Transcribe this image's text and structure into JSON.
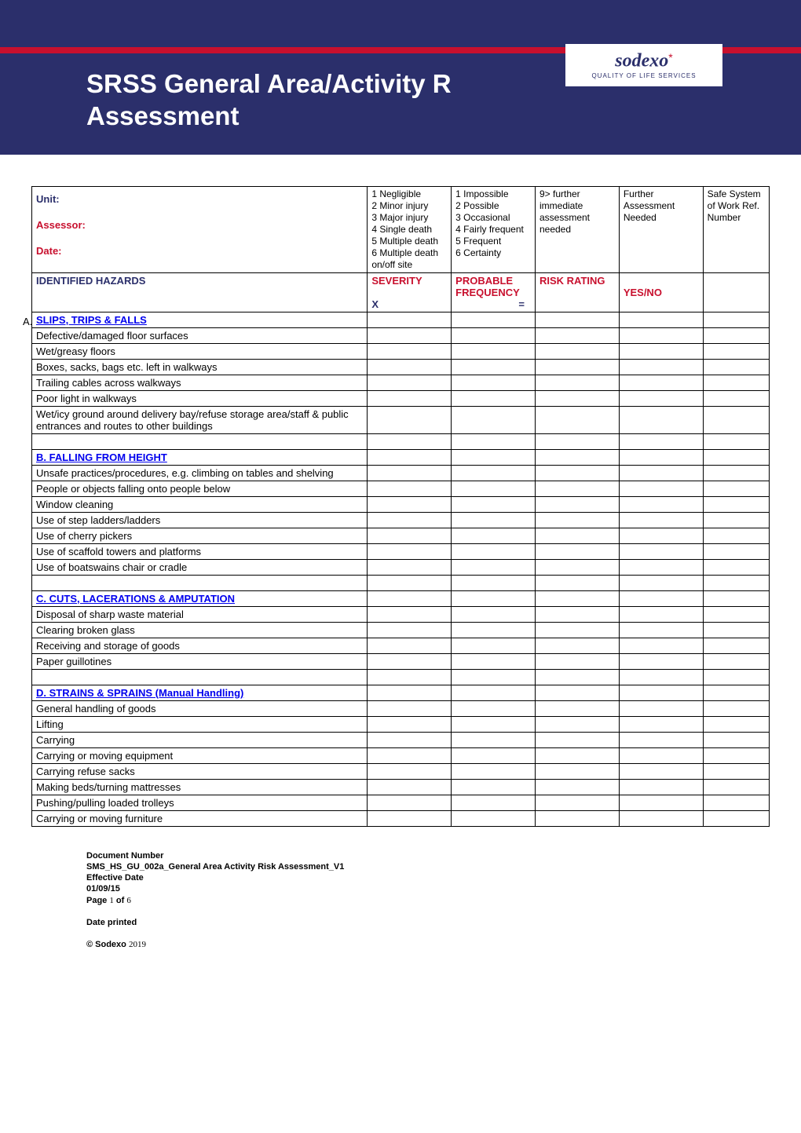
{
  "colors": {
    "navy": "#2b2f6b",
    "red": "#c8102e",
    "white": "#ffffff",
    "link_blue": "#0000ee",
    "border": "#000000"
  },
  "fonts": {
    "body": "Arial, Helvetica, sans-serif",
    "title_size_pt": 33,
    "table_size_pt": 13,
    "footer_size_pt": 11
  },
  "logo": {
    "brand": "sodexo",
    "tagline": "QUALITY OF LIFE SERVICES"
  },
  "title_line1": "SRSS General Area/Activity R",
  "title_line2": "Assessment",
  "form_fields": {
    "unit_label": "Unit:",
    "assessor_label": "Assessor:",
    "date_label": "Date:"
  },
  "severity_scale": [
    "1 Negligible",
    "2 Minor injury",
    "3 Major injury",
    "4 Single death",
    "5 Multiple death",
    "6 Multiple death on/off site"
  ],
  "frequency_scale": [
    "1 Impossible",
    "2 Possible",
    "3 Occasional",
    "4 Fairly frequent",
    "5 Frequent",
    "6 Certainty"
  ],
  "risk_note": "9> further immediate assessment needed",
  "further_header": "Further Assessment Needed",
  "safe_header": "Safe System of Work Ref. Number",
  "column_headers": {
    "hazards": "IDENTIFIED HAZARDS",
    "severity": "SEVERITY",
    "severity_sub": "X",
    "frequency": "PROBABLE FREQUENCY",
    "frequency_sub": "=",
    "risk": "RISK RATING",
    "yesno": "YES/NO"
  },
  "section_a_marker": "A.",
  "sections": [
    {
      "heading": "SLIPS, TRIPS & FALLS",
      "style": "link",
      "rows": [
        "Defective/damaged floor surfaces",
        "Wet/greasy floors",
        "Boxes, sacks, bags etc. left in walkways",
        "Trailing cables across walkways",
        "Poor light in walkways",
        "Wet/icy ground around delivery bay/refuse storage area/staff & public entrances and routes to other buildings"
      ]
    },
    {
      "heading": "B. FALLING FROM HEIGHT",
      "style": "link",
      "rows": [
        "Unsafe practices/procedures, e.g. climbing on tables and shelving",
        "People or objects falling onto people below",
        "Window cleaning",
        "Use of step ladders/ladders",
        "Use of cherry pickers",
        "Use of scaffold towers and platforms",
        "Use of boatswains chair or cradle"
      ]
    },
    {
      "heading": "C. CUTS, LACERATIONS & AMPUTATION",
      "style": "link",
      "rows": [
        "Disposal of sharp waste material",
        "Clearing broken glass",
        "Receiving and storage of goods",
        "Paper guillotines"
      ]
    },
    {
      "heading": "D. STRAINS & SPRAINS (Manual Handling)",
      "style": "link",
      "rows": [
        "General handling of goods",
        "Lifting",
        "Carrying",
        "Carrying or moving equipment",
        "Carrying refuse sacks",
        "Making beds/turning mattresses",
        "Pushing/pulling loaded trolleys",
        "Carrying or moving furniture"
      ]
    }
  ],
  "footer": {
    "doc_number_label": "Document Number",
    "doc_number": "SMS_HS_GU_002a_General Area Activity Risk Assessment_V1",
    "eff_date_label": "Effective Date",
    "eff_date": "01/09/15",
    "page_prefix": "Page ",
    "page_current": "1",
    "page_sep": " of ",
    "page_total": "6",
    "date_printed_label": "Date printed",
    "copyright": "© Sodexo ",
    "copyright_year": "2019"
  }
}
